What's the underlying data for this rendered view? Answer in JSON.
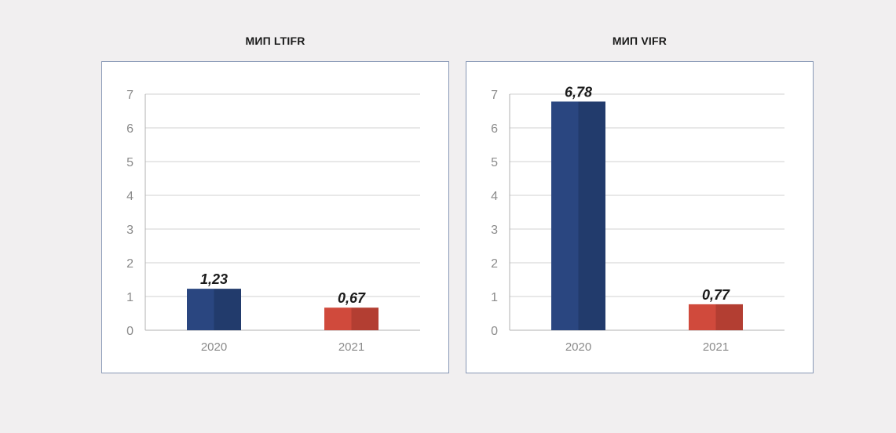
{
  "colors": {
    "bar_2020": "#2a4680",
    "bar_2020_shade": "#223b6c",
    "bar_2021": "#d04a3c",
    "bar_2021_shade": "#b33e32",
    "grid": "#d0d0d0",
    "axis": "#b0b0b0"
  },
  "chart_data": [
    {
      "type": "bar",
      "title": "МИП LTIFR",
      "categories": [
        "2020",
        "2021"
      ],
      "values": [
        1.23,
        0.67
      ],
      "value_labels": [
        "1,23",
        "0,67"
      ],
      "ylim": [
        0,
        7
      ],
      "yticks": [
        0,
        1,
        2,
        3,
        4,
        5,
        6,
        7
      ],
      "xlabel": "",
      "ylabel": "",
      "grid": true,
      "legend": "none"
    },
    {
      "type": "bar",
      "title": "МИП VIFR",
      "categories": [
        "2020",
        "2021"
      ],
      "values": [
        6.78,
        0.77
      ],
      "value_labels": [
        "6,78",
        "0,77"
      ],
      "ylim": [
        0,
        7
      ],
      "yticks": [
        0,
        1,
        2,
        3,
        4,
        5,
        6,
        7
      ],
      "xlabel": "",
      "ylabel": "",
      "grid": true,
      "legend": "none"
    }
  ]
}
